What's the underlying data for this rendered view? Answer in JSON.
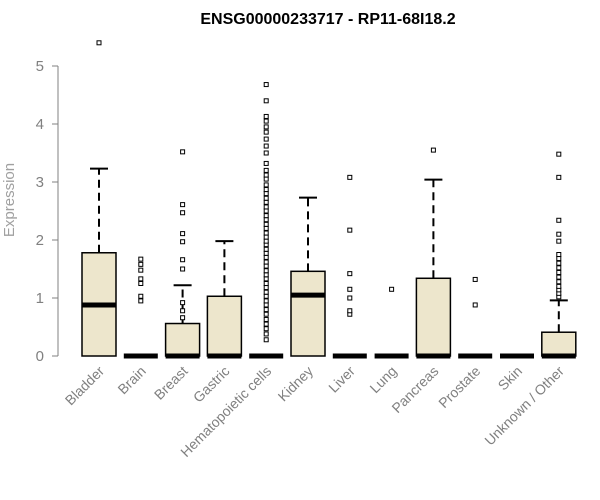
{
  "chart_data": {
    "type": "boxplot",
    "title": "ENSG00000233717 - RP11-68I18.2",
    "xlabel": "",
    "ylabel": "Expression",
    "ylim": [
      0,
      5.4
    ],
    "yticks": [
      "0",
      "1",
      "2",
      "3",
      "4",
      "5"
    ],
    "grid": false,
    "box_fill": "#ede6cc",
    "box_stroke": "#000000",
    "categories": [
      "Bladder",
      "Brain",
      "Breast",
      "Gastric",
      "Hematopoietic cells",
      "Kidney",
      "Liver",
      "Lung",
      "Pancreas",
      "Prostate",
      "Skin",
      "Unknown / Other"
    ],
    "boxes": [
      {
        "q1": 0.0,
        "median": 0.88,
        "q3": 1.78,
        "whisker_low": 0.0,
        "whisker_high": 3.23,
        "outliers": [
          5.4
        ]
      },
      {
        "q1": 0.0,
        "median": 0.0,
        "q3": 0.0,
        "whisker_low": 0.0,
        "whisker_high": 0.0,
        "outliers": [
          0.95,
          1.03,
          1.25,
          1.33,
          1.48,
          1.58,
          1.67
        ]
      },
      {
        "q1": 0.0,
        "median": 0.0,
        "q3": 0.56,
        "whisker_low": 0.0,
        "whisker_high": 1.22,
        "outliers": [
          0.66,
          0.78,
          0.92,
          1.5,
          1.66,
          1.97,
          2.11,
          2.47,
          2.61,
          3.52
        ]
      },
      {
        "q1": 0.0,
        "median": 0.0,
        "q3": 1.03,
        "whisker_low": 0.0,
        "whisker_high": 1.98,
        "outliers": []
      },
      {
        "q1": 0.0,
        "median": 0.0,
        "q3": 0.0,
        "whisker_low": 0.0,
        "whisker_high": 0.0,
        "outliers": [
          0.28,
          0.38,
          0.47,
          0.55,
          0.63,
          0.72,
          0.8,
          0.88,
          0.95,
          1.03,
          1.1,
          1.18,
          1.25,
          1.33,
          1.4,
          1.47,
          1.55,
          1.62,
          1.7,
          1.77,
          1.84,
          1.92,
          1.98,
          2.05,
          2.12,
          2.2,
          2.27,
          2.35,
          2.42,
          2.5,
          2.57,
          2.65,
          2.72,
          2.8,
          2.87,
          2.95,
          3.05,
          3.12,
          3.2,
          3.32,
          3.5,
          3.62,
          3.74,
          3.86,
          3.95,
          4.05,
          4.13,
          4.4,
          4.68
        ]
      },
      {
        "q1": 0.0,
        "median": 1.05,
        "q3": 1.46,
        "whisker_low": 0.0,
        "whisker_high": 2.73,
        "outliers": []
      },
      {
        "q1": 0.0,
        "median": 0.0,
        "q3": 0.0,
        "whisker_low": 0.0,
        "whisker_high": 0.0,
        "outliers": [
          0.72,
          0.78,
          1.0,
          1.15,
          1.42,
          2.17,
          3.08
        ]
      },
      {
        "q1": 0.0,
        "median": 0.0,
        "q3": 0.0,
        "whisker_low": 0.0,
        "whisker_high": 0.0,
        "outliers": [
          1.15
        ]
      },
      {
        "q1": 0.0,
        "median": 0.0,
        "q3": 1.34,
        "whisker_low": 0.0,
        "whisker_high": 3.04,
        "outliers": [
          3.55
        ]
      },
      {
        "q1": 0.0,
        "median": 0.0,
        "q3": 0.0,
        "whisker_low": 0.0,
        "whisker_high": 0.0,
        "outliers": [
          0.88,
          1.32
        ]
      },
      {
        "q1": 0.0,
        "median": 0.0,
        "q3": 0.0,
        "whisker_low": 0.0,
        "whisker_high": 0.0,
        "outliers": []
      },
      {
        "q1": 0.0,
        "median": 0.0,
        "q3": 0.41,
        "whisker_low": 0.0,
        "whisker_high": 0.96,
        "outliers": [
          1.02,
          1.08,
          1.14,
          1.2,
          1.28,
          1.36,
          1.44,
          1.52,
          1.6,
          1.68,
          1.75,
          1.98,
          2.1,
          2.34,
          3.08,
          3.48
        ]
      }
    ]
  }
}
